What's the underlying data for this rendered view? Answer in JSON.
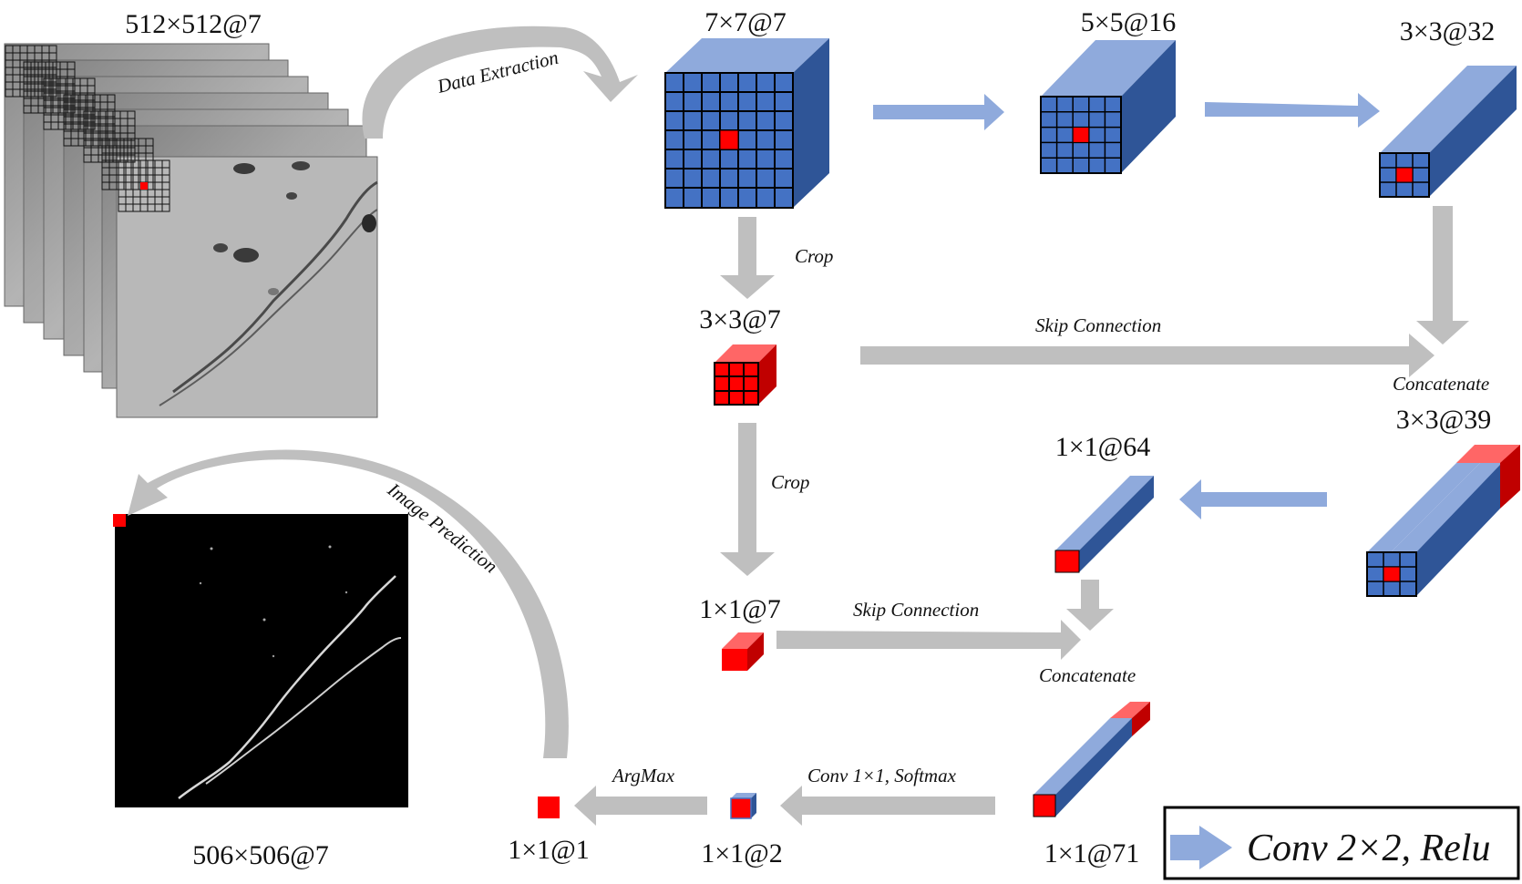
{
  "inputs": {
    "stack_label": "512×512@7",
    "prediction_label": "506×506@7"
  },
  "layers": {
    "l7x7": "7×7@7",
    "l5x5": "5×5@16",
    "l3x3_32": "3×3@32",
    "l3x3_7": "3×3@7",
    "l3x3_39": "3×3@39",
    "l1x1_64": "1×1@64",
    "l1x1_7": "1×1@7",
    "l1x1_71": "1×1@71",
    "l1x1_2": "1×1@2",
    "l1x1_1": "1×1@1"
  },
  "annotations": {
    "data_extraction": "Data Extraction",
    "image_prediction": "Image Prediction",
    "crop_top": "Crop",
    "crop_bottom": "Crop",
    "skip_top": "Skip Connection",
    "skip_bottom": "Skip Connection",
    "concat_top": "Concatenate",
    "concat_bottom": "Concatenate",
    "conv_softmax": "Conv 1×1, Softmax",
    "argmax": "ArgMax"
  },
  "legend": {
    "label": "Conv 2×2, Relu"
  },
  "colors": {
    "cube_front": "#4472C4",
    "cube_top": "#8FAADC",
    "cube_side": "#2F5597",
    "red": "#FF0000",
    "red_top": "#FF6666",
    "red_side": "#C00000",
    "gray_arrow": "#BFBFBF",
    "blue_arrow": "#8FAADC"
  }
}
